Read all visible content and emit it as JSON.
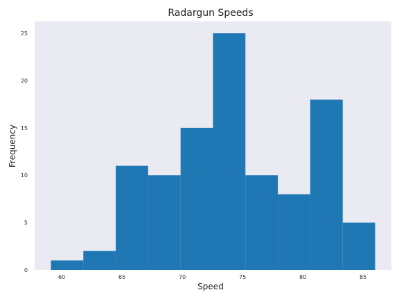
{
  "chart_data": {
    "type": "bar",
    "title": "Radargun Speeds",
    "xlabel": "Speed",
    "ylabel": "Frequency",
    "bin_edges": [
      59.1,
      61.79,
      64.48,
      67.17,
      69.86,
      72.55,
      75.24,
      77.93,
      80.62,
      83.31,
      86.0
    ],
    "values": [
      1,
      2,
      11,
      10,
      15,
      25,
      10,
      8,
      18,
      5
    ],
    "xlim": [
      57.75,
      87.35
    ],
    "ylim": [
      0,
      26.25
    ],
    "xticks": [
      60,
      65,
      70,
      75,
      80,
      85
    ],
    "yticks": [
      0,
      5,
      10,
      15,
      20,
      25
    ],
    "grid": false,
    "colors": {
      "bar": "#1f77b4",
      "plot_background": "#eaeaf2",
      "page_background": "#ffffff"
    }
  }
}
